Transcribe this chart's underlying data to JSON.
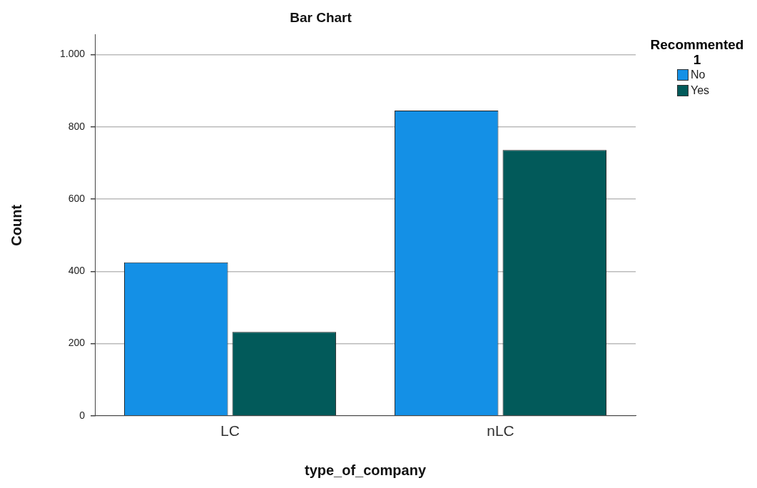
{
  "chart_data": {
    "type": "bar",
    "title": "Bar Chart",
    "xlabel": "type_of_company",
    "ylabel": "Count",
    "legend_title": "Recommented 1",
    "categories": [
      "LC",
      "nLC"
    ],
    "series": [
      {
        "name": "No",
        "color": "#1490e6",
        "values": [
          425,
          845
        ]
      },
      {
        "name": "Yes",
        "color": "#025a5a",
        "values": [
          232,
          736
        ]
      }
    ],
    "ylim": [
      0,
      1055
    ],
    "yticks": [
      0,
      200,
      400,
      600,
      800,
      {
        "value": 1000,
        "label": "1.000"
      }
    ],
    "grid": "y",
    "legend": "top right"
  }
}
